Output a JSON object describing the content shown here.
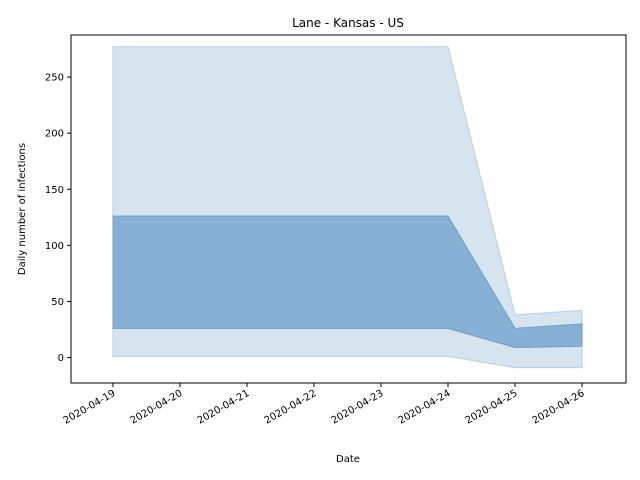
{
  "chart_data": {
    "type": "area",
    "title": "Lane - Kansas - US",
    "xlabel": "Date",
    "ylabel": "Daily number of infections",
    "x": [
      "2020-04-19",
      "2020-04-20",
      "2020-04-21",
      "2020-04-22",
      "2020-04-23",
      "2020-04-24",
      "2020-04-25",
      "2020-04-26"
    ],
    "ylim": [
      -22.7,
      287.5
    ],
    "yticks": [
      0,
      50,
      100,
      150,
      200,
      250
    ],
    "grid": false,
    "bands": [
      {
        "dates": [
          "2020-04-19",
          "2020-04-24",
          "2020-04-25",
          "2020-04-26"
        ],
        "lower": [
          1,
          1,
          -9,
          -9
        ],
        "upper": [
          277,
          277,
          38,
          42
        ],
        "fill": "#d6e4f0",
        "stroke": "#b5cfe5"
      },
      {
        "dates": [
          "2020-04-19",
          "2020-04-24",
          "2020-04-25",
          "2020-04-26"
        ],
        "lower": [
          26,
          26,
          9,
          10
        ],
        "upper": [
          126,
          126,
          26,
          30
        ],
        "fill": "#87b1d4",
        "stroke": "#6d9cc6"
      }
    ]
  }
}
